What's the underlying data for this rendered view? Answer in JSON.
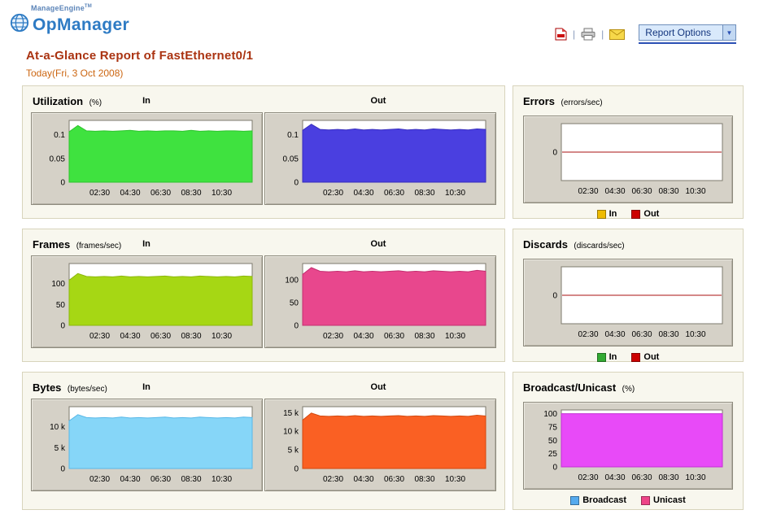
{
  "header": {
    "brand_company": "ManageEngine",
    "brand_tm": "TM",
    "brand_product": "OpManager",
    "separator": "|",
    "report_options_label": "Report Options",
    "dropdown_arrow": "▼"
  },
  "report": {
    "title": "At-a-Glance Report of FastEthernet0/1",
    "subtitle": "Today(Fri, 3 Oct 2008)"
  },
  "colors": {
    "title_text": "#aa3311",
    "subtitle_text": "#cc6611",
    "brand_blue": "#2e7bc4"
  },
  "x_ticks": [
    "02:30",
    "04:30",
    "06:30",
    "08:30",
    "10:30"
  ],
  "panels": [
    {
      "title": "Utilization",
      "unit": "(%)",
      "in_label": "In",
      "out_label": "Out",
      "charts": [
        {
          "series": "In",
          "type": "area",
          "color": "#3fe23f",
          "edge": "#2cc42c",
          "ymin": 0,
          "ymax": 0.13,
          "yticks": [
            {
              "v": 0.1,
              "label": "0.1"
            },
            {
              "v": 0.05,
              "label": "0.05"
            },
            {
              "v": 0,
              "label": "0"
            }
          ],
          "values": [
            0.106,
            0.119,
            0.108,
            0.107,
            0.108,
            0.107,
            0.108,
            0.109,
            0.107,
            0.108,
            0.107,
            0.108,
            0.108,
            0.107,
            0.109,
            0.107,
            0.108,
            0.107,
            0.108,
            0.108,
            0.107,
            0.108
          ]
        },
        {
          "series": "Out",
          "type": "area",
          "color": "#4a3fe0",
          "edge": "#372dbd",
          "ymin": 0,
          "ymax": 0.13,
          "yticks": [
            {
              "v": 0.1,
              "label": "0.1"
            },
            {
              "v": 0.05,
              "label": "0.05"
            },
            {
              "v": 0,
              "label": "0"
            }
          ],
          "values": [
            0.109,
            0.122,
            0.111,
            0.11,
            0.111,
            0.11,
            0.112,
            0.11,
            0.111,
            0.11,
            0.111,
            0.112,
            0.11,
            0.111,
            0.11,
            0.112,
            0.111,
            0.11,
            0.111,
            0.11,
            0.112,
            0.111
          ]
        }
      ]
    },
    {
      "title": "Errors",
      "unit": "(errors/sec)",
      "charts": [
        {
          "series": "In/Out",
          "type": "line",
          "zero_line": "#aa1111",
          "ymin": -1,
          "ymax": 1,
          "yticks": [
            {
              "v": 0,
              "label": "0"
            }
          ]
        }
      ],
      "legend": [
        {
          "label": "In",
          "color": "#eebb00"
        },
        {
          "label": "Out",
          "color": "#cc0000"
        }
      ]
    },
    {
      "title": "Frames",
      "unit": "(frames/sec)",
      "in_label": "In",
      "out_label": "Out",
      "charts": [
        {
          "series": "In",
          "type": "area",
          "color": "#a6d714",
          "edge": "#8cb70c",
          "ymin": 0,
          "ymax": 148,
          "yticks": [
            {
              "v": 100,
              "label": "100"
            },
            {
              "v": 50,
              "label": "50"
            },
            {
              "v": 0,
              "label": "0"
            }
          ],
          "values": [
            108,
            124,
            117,
            116,
            117,
            116,
            118,
            116,
            117,
            116,
            117,
            118,
            116,
            117,
            116,
            118,
            117,
            116,
            117,
            116,
            118,
            117
          ]
        },
        {
          "series": "Out",
          "type": "area",
          "color": "#e8478d",
          "edge": "#c22f70",
          "ymin": 0,
          "ymax": 136,
          "yticks": [
            {
              "v": 100,
              "label": "100"
            },
            {
              "v": 50,
              "label": "50"
            },
            {
              "v": 0,
              "label": "0"
            }
          ],
          "values": [
            112,
            127,
            119,
            118,
            119,
            118,
            120,
            118,
            119,
            118,
            119,
            120,
            118,
            119,
            118,
            120,
            119,
            118,
            119,
            118,
            121,
            119
          ]
        }
      ]
    },
    {
      "title": "Discards",
      "unit": "(discards/sec)",
      "charts": [
        {
          "series": "In/Out",
          "type": "line",
          "zero_line": "#aa1111",
          "ymin": -1,
          "ymax": 1,
          "yticks": [
            {
              "v": 0,
              "label": "0"
            }
          ]
        }
      ],
      "legend": [
        {
          "label": "In",
          "color": "#33aa33"
        },
        {
          "label": "Out",
          "color": "#cc0000"
        }
      ]
    },
    {
      "title": "Bytes",
      "unit": "(bytes/sec)",
      "in_label": "In",
      "out_label": "Out",
      "charts": [
        {
          "series": "In",
          "type": "area",
          "color": "#86d6f8",
          "edge": "#58b8e8",
          "ymin": 0,
          "ymax": 14800,
          "yticks": [
            {
              "v": 10000,
              "label": "10 k"
            },
            {
              "v": 5000,
              "label": "5 k"
            },
            {
              "v": 0,
              "label": "0"
            }
          ],
          "values": [
            11400,
            12900,
            12200,
            12100,
            12200,
            12100,
            12300,
            12100,
            12200,
            12100,
            12200,
            12300,
            12100,
            12200,
            12100,
            12300,
            12200,
            12100,
            12200,
            12100,
            12300,
            12200
          ]
        },
        {
          "series": "Out",
          "type": "area",
          "color": "#fa6023",
          "edge": "#d3490f",
          "ymin": 0,
          "ymax": 16600,
          "yticks": [
            {
              "v": 15000,
              "label": "15 k"
            },
            {
              "v": 10000,
              "label": "10 k"
            },
            {
              "v": 5000,
              "label": "5 k"
            },
            {
              "v": 0,
              "label": "0"
            }
          ],
          "values": [
            13000,
            14900,
            14100,
            14000,
            14100,
            14000,
            14200,
            14000,
            14100,
            14000,
            14100,
            14200,
            14000,
            14100,
            14000,
            14200,
            14100,
            14000,
            14100,
            14000,
            14300,
            14100
          ]
        }
      ]
    },
    {
      "title": "Broadcast/Unicast",
      "unit": "(%)",
      "charts": [
        {
          "series": "Unicast",
          "type": "area",
          "color": "#e84af8",
          "edge": "#c52fd6",
          "ymin": 0,
          "ymax": 107,
          "yticks": [
            {
              "v": 100,
              "label": "100"
            },
            {
              "v": 75,
              "label": "75"
            },
            {
              "v": 50,
              "label": "50"
            },
            {
              "v": 25,
              "label": "25"
            },
            {
              "v": 0,
              "label": "0"
            }
          ],
          "values": [
            100,
            100,
            100,
            100,
            100,
            100,
            100,
            100,
            100,
            100,
            100,
            100,
            100,
            100,
            100,
            100,
            100,
            100,
            100,
            100,
            100,
            100
          ]
        }
      ],
      "legend": [
        {
          "label": "Broadcast",
          "color": "#55aaee"
        },
        {
          "label": "Unicast",
          "color": "#ee4488"
        }
      ]
    }
  ]
}
